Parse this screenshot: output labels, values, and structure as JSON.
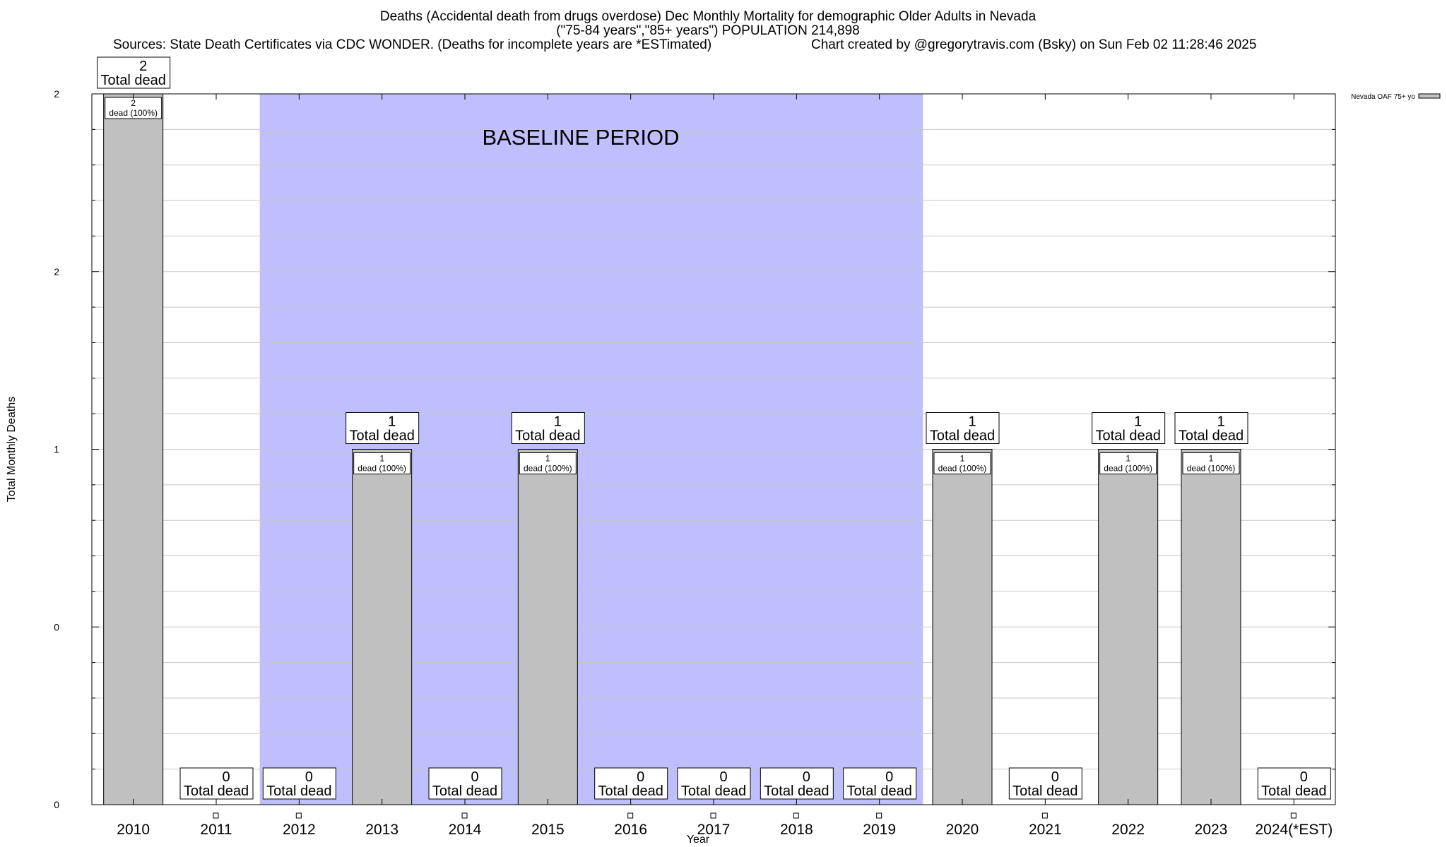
{
  "header": {
    "title_line1": "Deaths (Accidental death from drugs overdose) Dec Monthly Mortality for demographic Older Adults in Nevada",
    "title_line2": "(\"75-84 years\",\"85+ years\") POPULATION 214,898",
    "sources": "Sources: State Death Certificates via CDC WONDER. (Deaths for incomplete years are *ESTimated)",
    "credit": "Chart created by @gregorytravis.com (Bsky) on Sun Feb 02 11:28:46 2025"
  },
  "chart_data": {
    "type": "bar",
    "categories": [
      "2010",
      "2011",
      "2012",
      "2013",
      "2014",
      "2015",
      "2016",
      "2017",
      "2018",
      "2019",
      "2020",
      "2021",
      "2022",
      "2023",
      "2024(*EST)"
    ],
    "series": [
      {
        "name": "Nevada OAF 75+ yo",
        "values": [
          2,
          0,
          0,
          1,
          0,
          1,
          0,
          0,
          0,
          0,
          1,
          0,
          1,
          1,
          0
        ]
      }
    ],
    "total_labels": [
      "2",
      "0",
      "0",
      "1",
      "0",
      "1",
      "0",
      "0",
      "0",
      "0",
      "1",
      "0",
      "1",
      "1",
      "0"
    ],
    "total_suffix": "Total dead",
    "inner_labels": [
      "2",
      "",
      "",
      "1",
      "",
      "1",
      "",
      "",
      "",
      "",
      "1",
      "",
      "1",
      "1",
      ""
    ],
    "inner_suffix": "dead (100%)",
    "ylabel": "Total Monthly Deaths",
    "xlabel": "Year",
    "ylim": [
      0,
      2
    ],
    "y_tick_labels": [
      "0",
      "0",
      "1",
      "2",
      "2"
    ],
    "grid": true,
    "legend_placement": "top-right",
    "bar_color": "#c0c0c0",
    "baseline_period": {
      "label": "BASELINE PERIOD",
      "start": "2012",
      "end": "2019",
      "color": "#bfbffd"
    }
  }
}
